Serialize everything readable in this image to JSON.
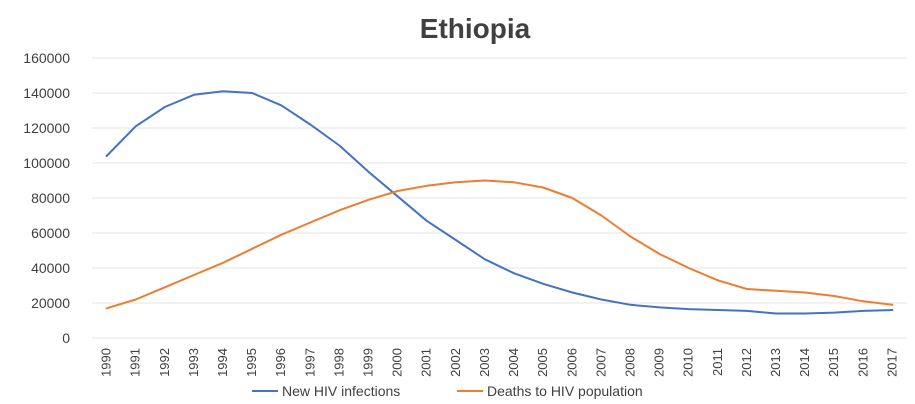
{
  "chart_data": {
    "type": "line",
    "title": "Ethiopia",
    "xlabel": "",
    "ylabel": "",
    "x": [
      "1990",
      "1991",
      "1992",
      "1993",
      "1994",
      "1995",
      "1996",
      "1997",
      "1998",
      "1999",
      "2000",
      "2001",
      "2002",
      "2003",
      "2004",
      "2005",
      "2006",
      "2007",
      "2008",
      "2009",
      "2010",
      "2011",
      "2012",
      "2013",
      "2014",
      "2015",
      "2016",
      "2017"
    ],
    "ylim": [
      0,
      160000
    ],
    "yticks": [
      0,
      20000,
      40000,
      60000,
      80000,
      100000,
      120000,
      140000,
      160000
    ],
    "grid": true,
    "legend_position": "bottom",
    "series": [
      {
        "name": "New HIV infections",
        "color": "#4472c4",
        "values": [
          104000,
          121000,
          132000,
          139000,
          141000,
          140000,
          133000,
          122000,
          110000,
          95000,
          81000,
          67000,
          56000,
          45000,
          37000,
          31000,
          26000,
          22000,
          19000,
          17500,
          16500,
          16000,
          15500,
          14000,
          14000,
          14500,
          15500,
          16000
        ]
      },
      {
        "name": "Deaths to HIV population",
        "color": "#ed7d31",
        "values": [
          17000,
          22000,
          29000,
          36000,
          43000,
          51000,
          59000,
          66000,
          73000,
          79000,
          84000,
          87000,
          89000,
          90000,
          89000,
          86000,
          80000,
          70000,
          58000,
          48000,
          40000,
          33000,
          28000,
          27000,
          26000,
          24000,
          21000,
          19000
        ]
      }
    ]
  }
}
